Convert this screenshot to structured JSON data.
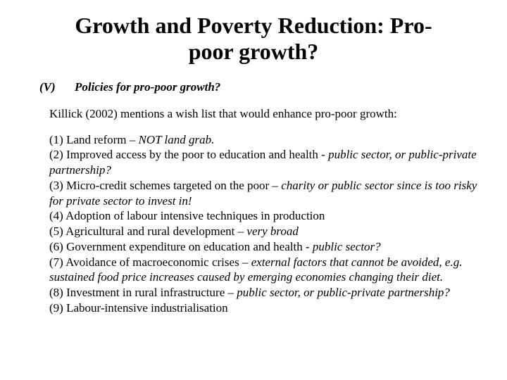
{
  "title_fontsize": 32,
  "body_fontsize": 17,
  "text_color": "#000000",
  "background_color": "#ffffff",
  "title_line1": "Growth and Poverty Reduction: Pro-",
  "title_line2": "poor growth?",
  "section_num": "(V)",
  "section_heading": "Policies for pro-poor growth?",
  "intro": "Killick (2002) mentions a wish list that would enhance pro-poor growth:",
  "items": [
    {
      "pre": "(1) Land reform – ",
      "ital": "NOT land grab.",
      "post": ""
    },
    {
      "pre": "(2) Improved access by the poor to education and health - ",
      "ital": "public sector, or public-private partnership?",
      "post": ""
    },
    {
      "pre": "(3) Micro-credit schemes targeted on the poor – ",
      "ital": "charity or public sector since is too risky for private sector to invest in!",
      "post": ""
    },
    {
      "pre": "(4) Adoption of labour intensive techniques in production",
      "ital": "",
      "post": ""
    },
    {
      "pre": "(5) Agricultural and rural development – ",
      "ital": "very broad",
      "post": ""
    },
    {
      "pre": "(6) Government expenditure on education and health - ",
      "ital": "public sector?",
      "post": ""
    },
    {
      "pre": "(7) Avoidance of macroeconomic crises – ",
      "ital": "external factors that cannot be avoided, e.g. sustained food price increases caused by emerging economies changing their diet.",
      "post": ""
    },
    {
      "pre": "(8) Investment in rural infrastructure – ",
      "ital": "public sector, or public-private partnership?",
      "post": ""
    },
    {
      "pre": "(9) Labour-intensive industrialisation",
      "ital": "",
      "post": ""
    }
  ]
}
